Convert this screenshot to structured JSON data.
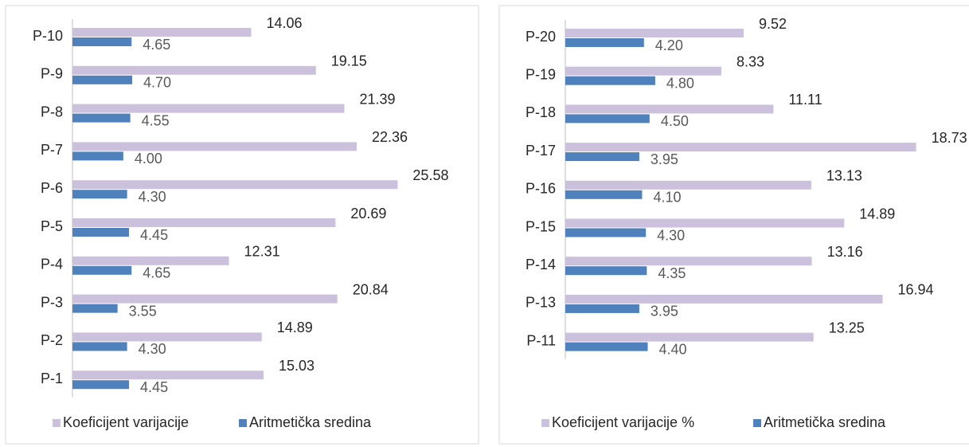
{
  "chart_data": [
    {
      "type": "bar",
      "orientation": "horizontal",
      "categories": [
        "P-10",
        "P-9",
        "P-8",
        "P-7",
        "P-6",
        "P-5",
        "P-4",
        "P-3",
        "P-2",
        "P-1"
      ],
      "series": [
        {
          "name": "Koeficijent varijacije",
          "color": "#ccc1dc",
          "values": [
            14.06,
            19.15,
            21.39,
            22.36,
            25.58,
            20.69,
            12.31,
            20.84,
            14.89,
            15.03
          ]
        },
        {
          "name": "Aritmetička sredina",
          "color": "#4f81bd",
          "values": [
            4.65,
            4.7,
            4.55,
            4.0,
            4.3,
            4.45,
            4.65,
            3.55,
            4.3,
            4.45
          ],
          "value_labels": [
            "4.65",
            "4.70",
            "4.55",
            "4.00",
            "4.30",
            "4.45",
            "4.65",
            "3.55",
            "4.30",
            "4.45"
          ]
        }
      ],
      "xlim": [
        0,
        30
      ],
      "legend": "bottom"
    },
    {
      "type": "bar",
      "orientation": "horizontal",
      "categories": [
        "P-20",
        "P-19",
        "P-18",
        "P-17",
        "P-16",
        "P-15",
        "P-14",
        "P-13",
        "P-11"
      ],
      "series": [
        {
          "name": "Koeficijent varijacije %",
          "color": "#ccc1dc",
          "values": [
            9.52,
            8.33,
            11.11,
            18.73,
            13.13,
            14.89,
            13.16,
            16.94,
            13.25
          ]
        },
        {
          "name": "Aritmetička sredina",
          "color": "#4f81bd",
          "values": [
            4.2,
            4.8,
            4.5,
            3.95,
            4.1,
            4.3,
            4.35,
            3.95,
            4.4
          ],
          "value_labels": [
            "4.20",
            "4.80",
            "4.50",
            "3.95",
            "4.10",
            "4.30",
            "4.35",
            "3.95",
            "4.40"
          ]
        }
      ],
      "xlim": [
        0,
        21
      ],
      "legend": "bottom"
    }
  ]
}
